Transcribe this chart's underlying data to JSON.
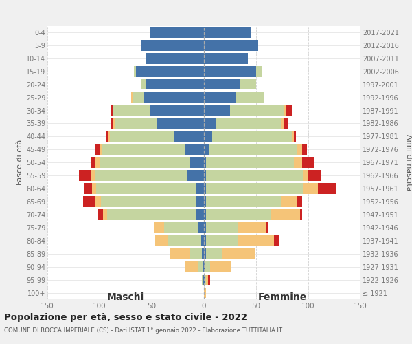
{
  "age_groups": [
    "0-4",
    "5-9",
    "10-14",
    "15-19",
    "20-24",
    "25-29",
    "30-34",
    "35-39",
    "40-44",
    "45-49",
    "50-54",
    "55-59",
    "60-64",
    "65-69",
    "70-74",
    "75-79",
    "80-84",
    "85-89",
    "90-94",
    "95-99",
    "100+"
  ],
  "birth_years": [
    "2017-2021",
    "2012-2016",
    "2007-2011",
    "2002-2006",
    "1997-2001",
    "1992-1996",
    "1987-1991",
    "1982-1986",
    "1977-1981",
    "1972-1976",
    "1967-1971",
    "1962-1966",
    "1957-1961",
    "1952-1956",
    "1947-1951",
    "1942-1946",
    "1937-1941",
    "1932-1936",
    "1927-1931",
    "1922-1926",
    "≤ 1921"
  ],
  "colors": {
    "celibe": "#4472a8",
    "coniugato": "#c5d5a0",
    "vedovo": "#f5c478",
    "divorziato": "#cc2222"
  },
  "maschi": {
    "celibe": [
      52,
      60,
      55,
      65,
      55,
      58,
      52,
      45,
      28,
      18,
      14,
      16,
      8,
      7,
      8,
      6,
      3,
      2,
      1,
      1,
      0
    ],
    "coniugato": [
      0,
      0,
      0,
      2,
      5,
      10,
      35,
      40,
      62,
      80,
      86,
      88,
      95,
      92,
      85,
      32,
      32,
      12,
      5,
      1,
      0
    ],
    "vedovo": [
      0,
      0,
      0,
      0,
      0,
      2,
      0,
      2,
      2,
      2,
      4,
      4,
      4,
      5,
      4,
      10,
      12,
      18,
      12,
      0,
      0
    ],
    "divorziato": [
      0,
      0,
      0,
      0,
      0,
      0,
      2,
      2,
      2,
      4,
      4,
      12,
      8,
      12,
      4,
      0,
      0,
      0,
      0,
      0,
      0
    ]
  },
  "femmine": {
    "nubile": [
      45,
      52,
      42,
      50,
      35,
      30,
      25,
      12,
      8,
      5,
      2,
      2,
      2,
      2,
      2,
      2,
      2,
      2,
      1,
      1,
      0
    ],
    "coniugata": [
      0,
      0,
      0,
      5,
      15,
      28,
      52,
      62,
      76,
      84,
      84,
      93,
      93,
      72,
      62,
      30,
      30,
      15,
      5,
      1,
      0
    ],
    "vedova": [
      0,
      0,
      0,
      0,
      0,
      0,
      2,
      2,
      2,
      5,
      8,
      5,
      14,
      15,
      28,
      28,
      35,
      32,
      20,
      2,
      2
    ],
    "divorziata": [
      0,
      0,
      0,
      0,
      0,
      0,
      5,
      5,
      2,
      5,
      12,
      12,
      18,
      5,
      2,
      2,
      5,
      0,
      0,
      2,
      0
    ]
  },
  "xlim": 150,
  "title": "Popolazione per età, sesso e stato civile - 2022",
  "subtitle": "COMUNE DI ROCCA IMPERIALE (CS) - Dati ISTAT 1° gennaio 2022 - Elaborazione TUTTITALIA.IT",
  "ylabel_left": "Fasce di età",
  "ylabel_right": "Anni di nascita",
  "xlabel_maschi": "Maschi",
  "xlabel_femmine": "Femmine",
  "bg_color": "#f0f0f0",
  "plot_bg_color": "#ffffff"
}
